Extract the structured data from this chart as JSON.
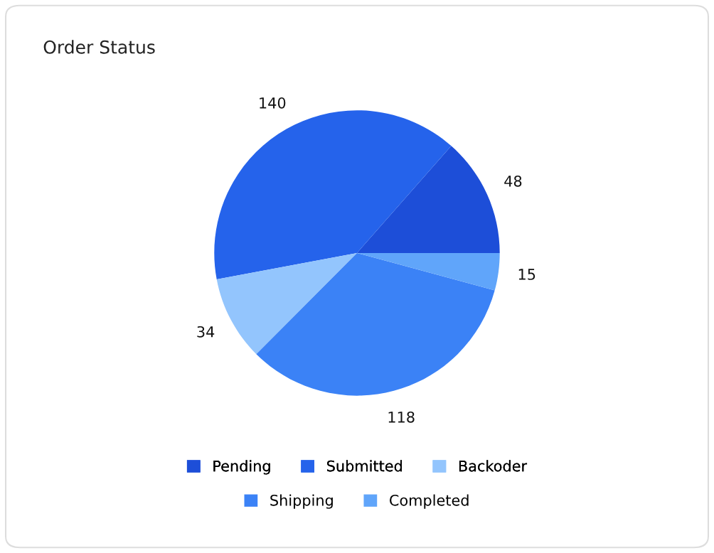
{
  "chart_data": {
    "type": "pie",
    "title": "Order Status",
    "categories": [
      "Pending",
      "Submitted",
      "Backoder",
      "Shipping",
      "Completed"
    ],
    "values": [
      48,
      140,
      34,
      118,
      15
    ],
    "data_labels": true,
    "colors": [
      "#1d4ed8",
      "#2563eb",
      "#93c5fd",
      "#3b82f6",
      "#60a5fa"
    ],
    "legend": "bottom"
  }
}
